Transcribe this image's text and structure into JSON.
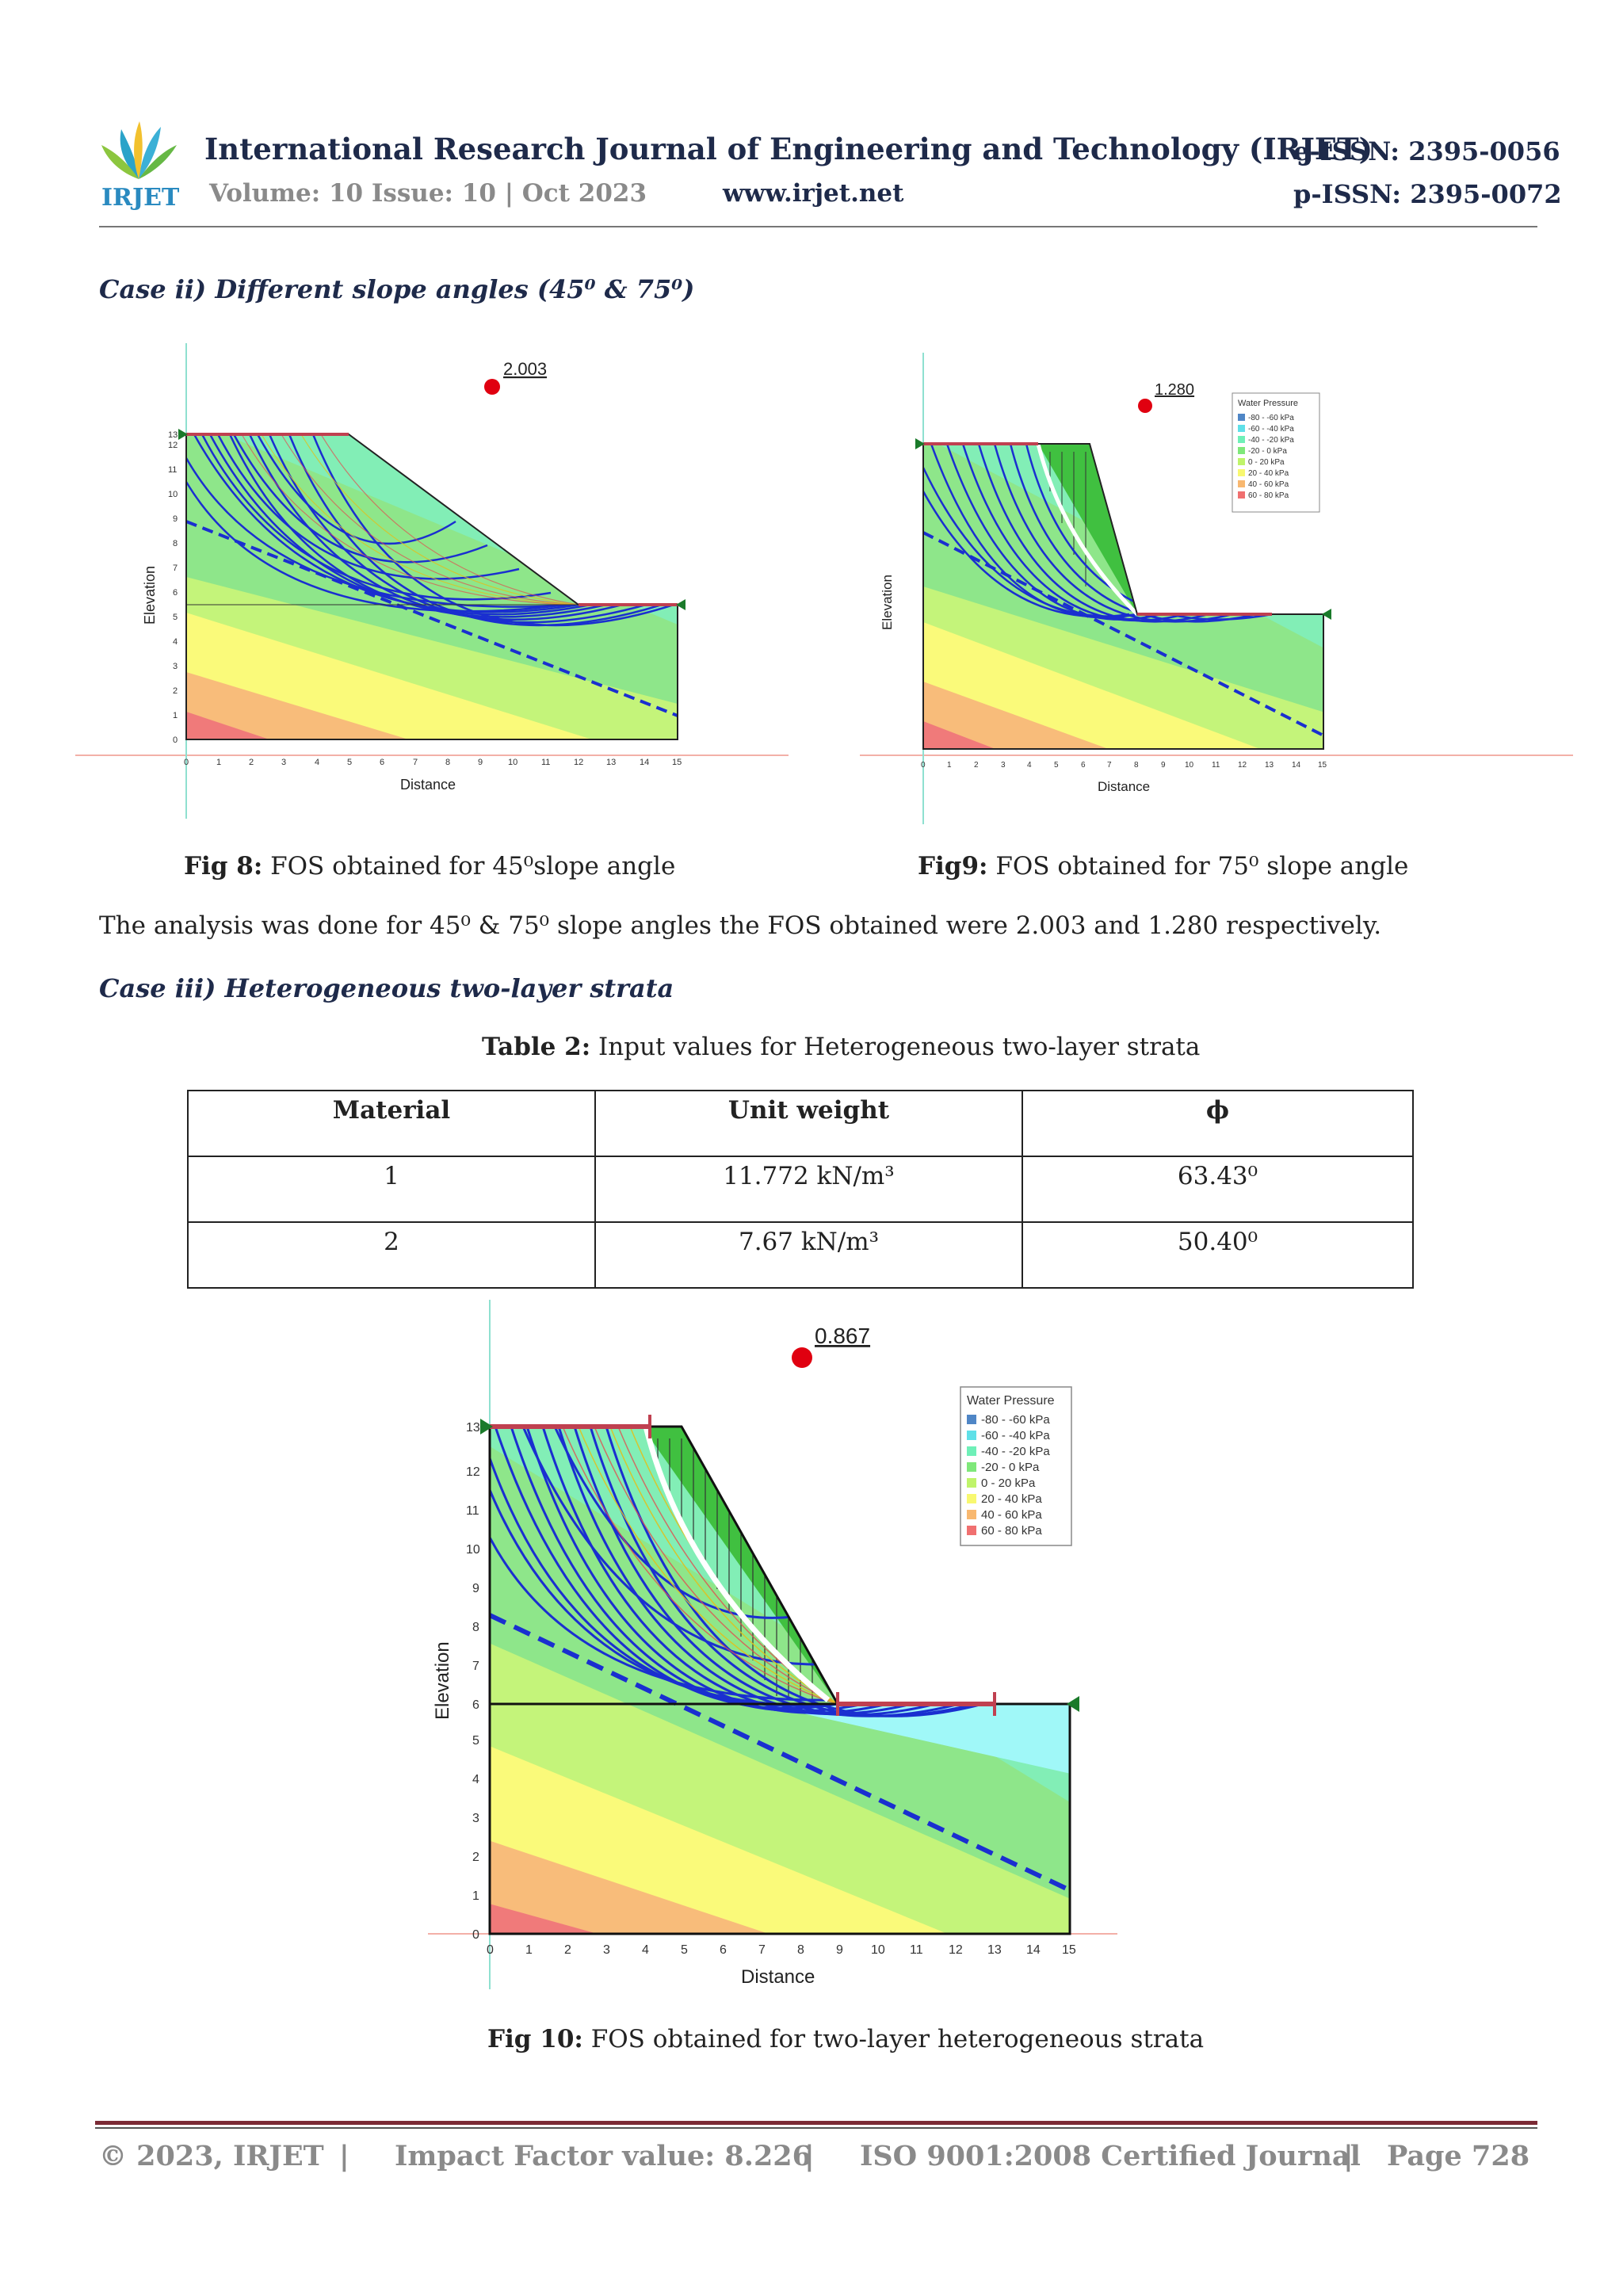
{
  "header": {
    "logo_text": "IRJET",
    "journal_title": "International Research Journal of Engineering and Technology (IRJET)",
    "volume": "Volume: 10 Issue: 10 | Oct 2023",
    "website": "www.irjet.net",
    "eissn": "e-ISSN: 2395-0056",
    "pissn": "p-ISSN: 2395-0072"
  },
  "case2": {
    "heading": "Case ii) Different slope angles (45⁰ & 75⁰)"
  },
  "fig8": {
    "fos": "2.003",
    "xlabel": "Distance",
    "ylabel": "Elevation",
    "caption_bold": "Fig 8:",
    "caption": " FOS obtained for 45⁰slope angle"
  },
  "fig9": {
    "fos": "1.280",
    "xlabel": "Distance",
    "ylabel": "Elevation",
    "caption_bold": "Fig9:",
    "caption": " FOS obtained for 75⁰ slope angle"
  },
  "paragraph": "The analysis was done for  45⁰ & 75⁰ slope angles the FOS obtained were 2.003 and 1.280 respectively.",
  "case3": {
    "heading": "Case iii) Heterogeneous two-layer strata"
  },
  "table2": {
    "caption_bold": "Table 2:",
    "caption": " Input values for Heterogeneous two-layer strata",
    "headers": [
      "Material",
      "Unit weight",
      "ϕ"
    ],
    "rows": [
      [
        "1",
        "11.772 kN/m³",
        "63.43⁰"
      ],
      [
        "2",
        "7.67 kN/m³",
        "50.40⁰"
      ]
    ]
  },
  "fig10": {
    "fos": "0.867",
    "xlabel": "Distance",
    "ylabel": "Elevation",
    "caption_bold": "Fig 10:",
    "caption": " FOS obtained for two-layer heterogeneous strata"
  },
  "legend": {
    "title": "Water Pressure",
    "items": [
      {
        "label": "-80 - -60 kPa",
        "color": "#4f86c6"
      },
      {
        "label": "-60 - -40 kPa",
        "color": "#5fe0e8"
      },
      {
        "label": "-40 - -20 kPa",
        "color": "#6ff0b8"
      },
      {
        "label": "-20 - 0 kPa",
        "color": "#7fe87a"
      },
      {
        "label": "0 - 20 kPa",
        "color": "#bff46a"
      },
      {
        "label": "20 - 40 kPa",
        "color": "#f8f870"
      },
      {
        "label": "40 - 60 kPa",
        "color": "#f8b870"
      },
      {
        "label": "60 - 80 kPa",
        "color": "#f07070"
      }
    ]
  },
  "axis": {
    "x_ticks": [
      "0",
      "1",
      "2",
      "3",
      "4",
      "5",
      "6",
      "7",
      "8",
      "9",
      "10",
      "11",
      "12",
      "13",
      "14",
      "15"
    ],
    "y_ticks_fig8": [
      "0",
      "1",
      "2",
      "3",
      "4",
      "5",
      "6",
      "7",
      "8",
      "9",
      "10",
      "11",
      "12",
      "13"
    ],
    "y_ticks_fig10": [
      "0",
      "1",
      "2",
      "3",
      "4",
      "5",
      "6",
      "7",
      "8",
      "9",
      "10",
      "11",
      "12",
      "13"
    ]
  },
  "footer": {
    "copyright": "© 2023, IRJET",
    "impact": "Impact Factor value: 8.226",
    "iso": "ISO 9001:2008 Certified Journal",
    "page": "Page 728",
    "sep": "|"
  }
}
